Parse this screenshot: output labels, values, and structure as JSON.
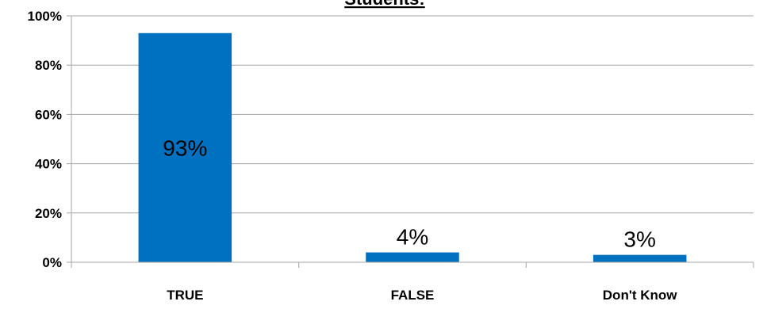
{
  "chart_data": {
    "type": "bar",
    "title": "Students:",
    "categories": [
      "TRUE",
      "FALSE",
      "Don't Know"
    ],
    "values": [
      93,
      4,
      3
    ],
    "data_labels": [
      "93%",
      "4%",
      "3%"
    ],
    "ylim": [
      0,
      100
    ],
    "yticks": [
      0,
      20,
      40,
      60,
      80,
      100
    ],
    "ytick_labels": [
      "0%",
      "20%",
      "40%",
      "60%",
      "80%",
      "100%"
    ],
    "grid": true,
    "bar_color": "#0070C0",
    "grid_color": "#A6A6A6",
    "xlabel": "",
    "ylabel": ""
  }
}
